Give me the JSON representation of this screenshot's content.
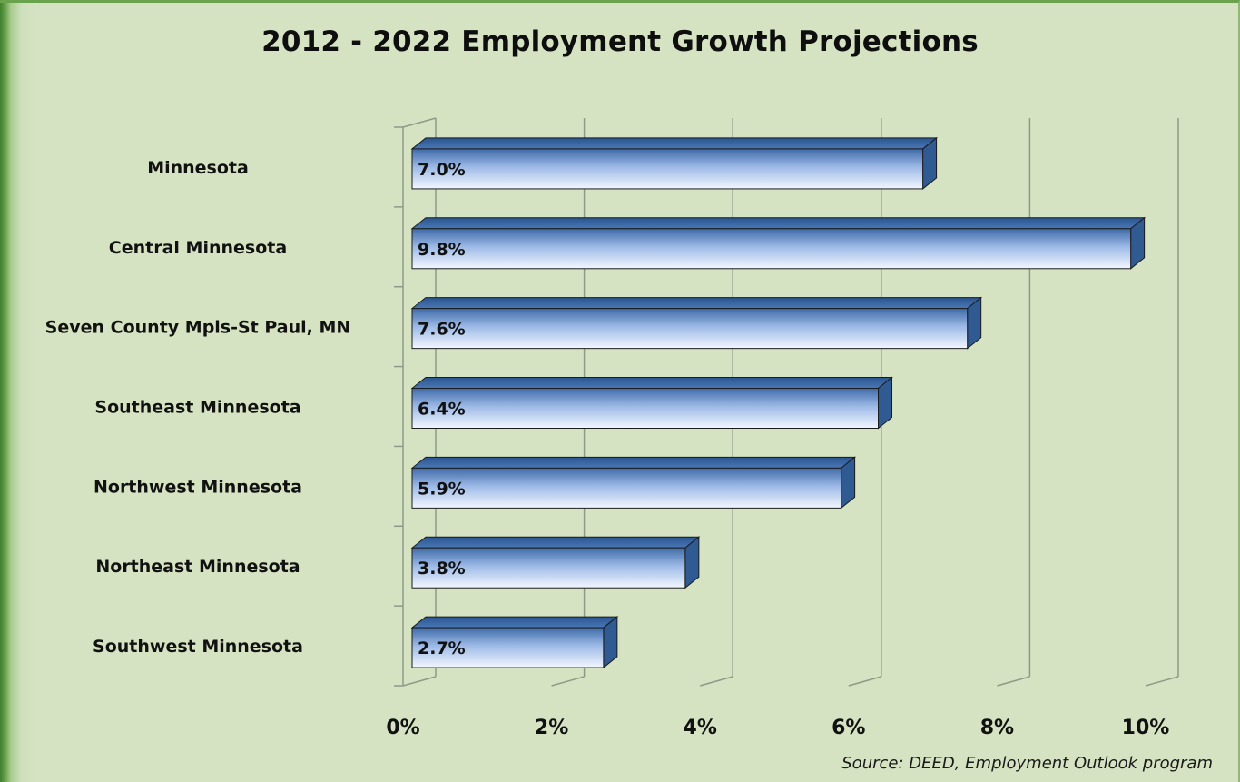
{
  "chart_data": {
    "type": "bar",
    "orientation": "horizontal",
    "title": "2012 - 2022 Employment Growth Projections",
    "categories": [
      "Minnesota",
      "Central Minnesota",
      "Seven County Mpls-St Paul, MN",
      "Southeast Minnesota",
      "Northwest Minnesota",
      "Northeast Minnesota",
      "Southwest Minnesota"
    ],
    "values": [
      7.0,
      9.8,
      7.6,
      6.4,
      5.9,
      3.8,
      2.7
    ],
    "data_labels": [
      "7.0%",
      "9.8%",
      "7.6%",
      "6.4%",
      "5.9%",
      "3.8%",
      "2.7%"
    ],
    "xlim": [
      0,
      10
    ],
    "x_ticks": [
      0,
      2,
      4,
      6,
      8,
      10
    ],
    "x_tick_labels": [
      "0%",
      "2%",
      "4%",
      "6%",
      "8%",
      "10%"
    ],
    "grid": true,
    "legend": "none",
    "style": "3d",
    "source": "Source: DEED, Employment Outlook program"
  },
  "colors": {
    "background": "#d5e3c2",
    "frame_accent": "#3f7f2e",
    "bar_top": "#3e6aa8",
    "bar_bottom": "#f0f5ff",
    "bar_side": "#2f5a92",
    "gridline": "#8d9a88"
  }
}
